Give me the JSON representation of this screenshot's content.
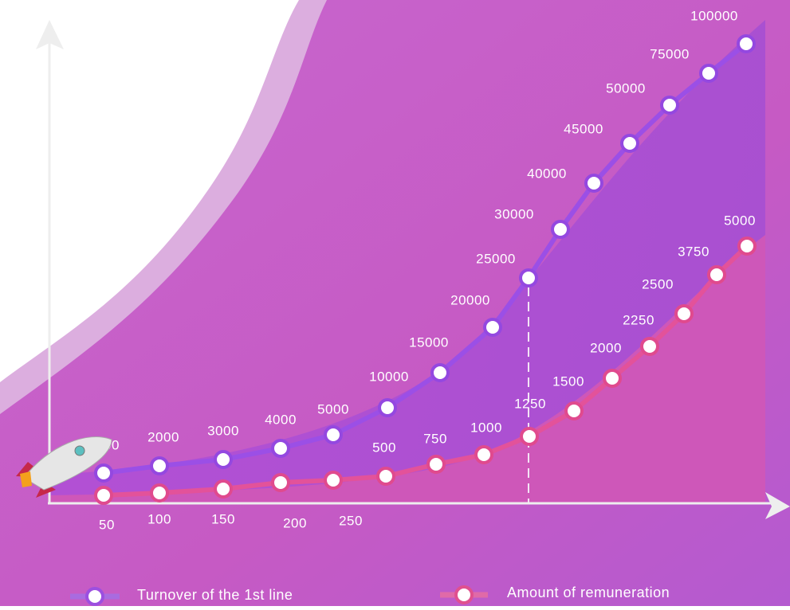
{
  "series": [
    {
      "name": "Turnover of the 1st line",
      "values": [
        1000,
        2000,
        3000,
        4000,
        5000,
        10000,
        15000,
        20000,
        25000,
        30000,
        40000,
        45000,
        50000,
        75000,
        100000
      ]
    },
    {
      "name": "Amount of remuneration",
      "values": [
        50,
        100,
        150,
        200,
        250,
        500,
        750,
        1000,
        1250,
        1500,
        2000,
        2250,
        2500,
        3750,
        5000
      ]
    }
  ]
}
